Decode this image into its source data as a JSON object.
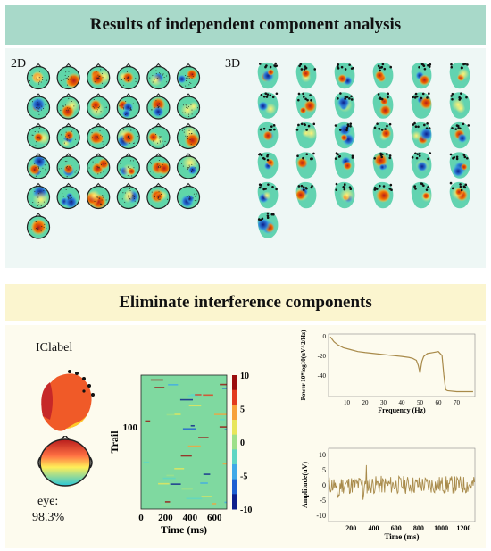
{
  "section1": {
    "title": "Results of independent component analysis",
    "label_2d": "2D",
    "label_3d": "3D",
    "component_count": 31
  },
  "section2": {
    "title": "Eliminate interference components",
    "iclabel": "IClabel",
    "eye_label": "eye:",
    "eye_value": "98.3%"
  },
  "erp_image": {
    "type": "heatmap",
    "xlabel": "Time (ms)",
    "ylabel": "Trail",
    "xticks": [
      "0",
      "200",
      "400",
      "600"
    ],
    "yticks": [
      "100"
    ],
    "colorbar_ticks": [
      "10",
      "5",
      "0",
      "-5",
      "-10"
    ],
    "clim": [
      -10,
      10
    ]
  },
  "chart_data": [
    {
      "type": "line",
      "xlabel": "Frequency (Hz)",
      "ylabel": "Power 10*log10(uV^2/Hz)",
      "xlim": [
        0,
        80
      ],
      "ylim": [
        -62,
        2
      ],
      "xticks": [
        10,
        20,
        30,
        40,
        50,
        60,
        70
      ],
      "yticks": [
        0,
        -20,
        -40
      ],
      "color": "#a88a4a",
      "x": [
        1,
        3,
        5,
        8,
        12,
        16,
        20,
        25,
        30,
        35,
        40,
        44,
        46,
        48,
        49,
        50,
        51,
        52,
        54,
        57,
        60,
        62,
        63,
        64,
        65,
        70,
        75,
        79
      ],
      "y": [
        -1,
        -6,
        -9,
        -12,
        -14,
        -16,
        -17,
        -18,
        -19,
        -20,
        -21,
        -22,
        -23,
        -25,
        -30,
        -38,
        -26,
        -21,
        -18,
        -17,
        -16,
        -20,
        -40,
        -55,
        -56,
        -57,
        -57,
        -57
      ]
    },
    {
      "type": "line",
      "xlabel": "Time (ms)",
      "ylabel": "Amplitude(uV)",
      "xlim": [
        0,
        1300
      ],
      "ylim": [
        -12,
        12
      ],
      "xticks": [
        200,
        400,
        600,
        800,
        1000,
        1200
      ],
      "yticks": [
        10,
        5,
        0,
        -5,
        -10
      ],
      "color": "#a88a4a"
    }
  ]
}
